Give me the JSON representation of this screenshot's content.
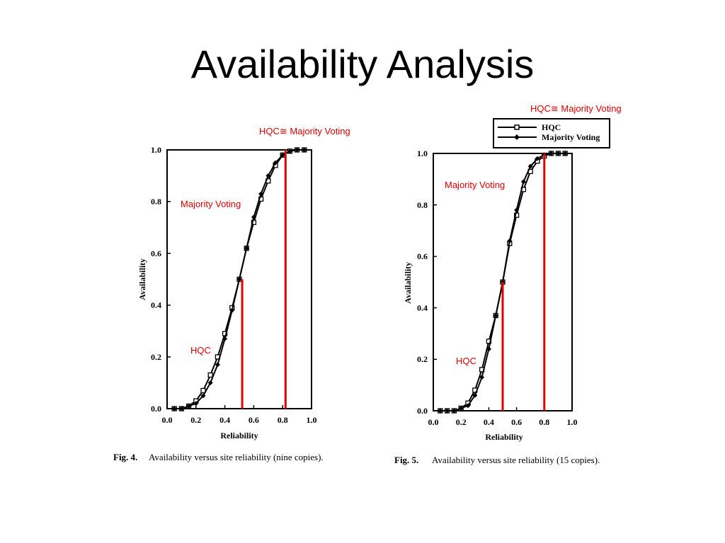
{
  "slide": {
    "title": "Availability Analysis"
  },
  "chart_data": [
    {
      "type": "line",
      "caption_num": "Fig. 4.",
      "caption_text": "Availability versus site reliability (nine copies).",
      "xlabel": "Reliability",
      "ylabel": "Availability",
      "xlim": [
        0,
        1
      ],
      "ylim": [
        0,
        1
      ],
      "xticks": [
        "0.0",
        "0.2",
        "0.4",
        "0.6",
        "0.8",
        "1.0"
      ],
      "yticks": [
        "0.0",
        "0.2",
        "0.4",
        "0.6",
        "0.8",
        "1.0"
      ],
      "series": [
        {
          "name": "HQC",
          "marker": "square",
          "x": [
            0.05,
            0.1,
            0.15,
            0.2,
            0.25,
            0.3,
            0.35,
            0.4,
            0.45,
            0.5,
            0.55,
            0.6,
            0.65,
            0.7,
            0.75,
            0.8,
            0.85,
            0.9,
            0.95
          ],
          "y": [
            0.0,
            0.0,
            0.01,
            0.03,
            0.07,
            0.13,
            0.2,
            0.29,
            0.39,
            0.5,
            0.62,
            0.72,
            0.81,
            0.88,
            0.94,
            0.98,
            0.995,
            1.0,
            1.0
          ]
        },
        {
          "name": "Majority Voting",
          "marker": "diamond",
          "x": [
            0.05,
            0.1,
            0.15,
            0.2,
            0.25,
            0.3,
            0.35,
            0.4,
            0.45,
            0.5,
            0.55,
            0.6,
            0.65,
            0.7,
            0.75,
            0.8,
            0.85,
            0.9,
            0.95
          ],
          "y": [
            0.0,
            0.0,
            0.01,
            0.02,
            0.05,
            0.1,
            0.17,
            0.27,
            0.38,
            0.5,
            0.62,
            0.74,
            0.83,
            0.9,
            0.95,
            0.98,
            0.995,
            1.0,
            1.0
          ]
        }
      ],
      "markers": [
        {
          "label": "HQC",
          "x": 0.52
        },
        {
          "label": "HQC≅ Majority Voting",
          "x": 0.82
        }
      ],
      "annotations": [
        "HQC≅ Majority Voting",
        "Majority Voting",
        "HQC"
      ],
      "colors": {
        "annotation": "#e00000",
        "line": "#000000"
      }
    },
    {
      "type": "line",
      "caption_num": "Fig. 5.",
      "caption_text": "Availability versus site reliability (15 copies).",
      "xlabel": "Reliability",
      "ylabel": "Availability",
      "xlim": [
        0,
        1
      ],
      "ylim": [
        0,
        1
      ],
      "xticks": [
        "0.0",
        "0.2",
        "0.4",
        "0.6",
        "0.8",
        "1.0"
      ],
      "yticks": [
        "0.0",
        "0.2",
        "0.4",
        "0.6",
        "0.8",
        "1.0"
      ],
      "legend": {
        "position": "top-right",
        "entries": [
          "HQC",
          "Majority Voting"
        ]
      },
      "series": [
        {
          "name": "HQC",
          "marker": "square",
          "x": [
            0.05,
            0.1,
            0.15,
            0.2,
            0.25,
            0.3,
            0.35,
            0.4,
            0.45,
            0.5,
            0.55,
            0.6,
            0.65,
            0.7,
            0.75,
            0.8,
            0.85,
            0.9,
            0.95
          ],
          "y": [
            0.0,
            0.0,
            0.0,
            0.01,
            0.03,
            0.08,
            0.16,
            0.27,
            0.37,
            0.5,
            0.65,
            0.76,
            0.86,
            0.93,
            0.97,
            0.99,
            1.0,
            1.0,
            1.0
          ]
        },
        {
          "name": "Majority Voting",
          "marker": "diamond",
          "x": [
            0.05,
            0.1,
            0.15,
            0.2,
            0.25,
            0.3,
            0.35,
            0.4,
            0.45,
            0.5,
            0.55,
            0.6,
            0.65,
            0.7,
            0.75,
            0.8,
            0.85,
            0.9,
            0.95
          ],
          "y": [
            0.0,
            0.0,
            0.0,
            0.01,
            0.02,
            0.06,
            0.13,
            0.24,
            0.37,
            0.5,
            0.66,
            0.78,
            0.89,
            0.95,
            0.98,
            0.995,
            1.0,
            1.0,
            1.0
          ]
        }
      ],
      "markers": [
        {
          "label": "HQC",
          "x": 0.5
        },
        {
          "label": "HQC≅ Majority Voting",
          "x": 0.8
        }
      ],
      "annotations": [
        "HQC≅ Majority Voting",
        "Majority Voting",
        "HQC"
      ],
      "colors": {
        "annotation": "#e00000",
        "line": "#000000"
      }
    }
  ]
}
